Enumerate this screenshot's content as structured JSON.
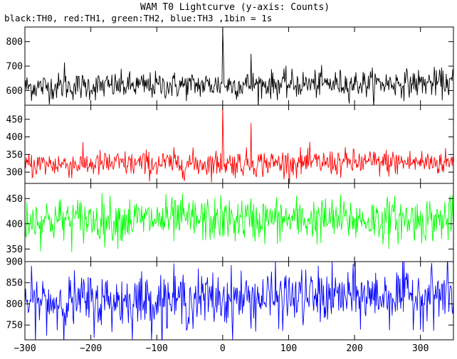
{
  "title": "WAM T0 Lightcurve (y-axis: Counts)",
  "subtitle": "black:TH0, red:TH1, green:TH2, blue:TH3 ,1bin = 1s",
  "chart_data": {
    "type": "line",
    "x_range": [
      -300,
      350
    ],
    "x_ticks": [
      -300,
      -200,
      -100,
      0,
      100,
      200,
      300
    ],
    "bin_seconds": 1,
    "panels": [
      {
        "series": "TH0",
        "color": "#000000",
        "ylim": [
          540,
          860
        ],
        "y_ticks": [
          600,
          700,
          800
        ],
        "baseline_start": 615,
        "baseline_end": 632,
        "noise_sd": 28,
        "features": [
          [
            -240,
            715
          ],
          [
            0,
            855
          ],
          [
            1,
            760
          ],
          [
            43,
            750
          ]
        ]
      },
      {
        "series": "TH1",
        "color": "#ff0000",
        "ylim": [
          268,
          490
        ],
        "y_ticks": [
          300,
          350,
          400,
          450
        ],
        "baseline_start": 322,
        "baseline_end": 328,
        "noise_sd": 19,
        "features": [
          [
            0,
            488
          ],
          [
            1,
            390
          ],
          [
            43,
            440
          ]
        ]
      },
      {
        "series": "TH2",
        "color": "#00ff00",
        "ylim": [
          325,
          480
        ],
        "y_ticks": [
          350,
          400,
          450
        ],
        "baseline_start": 408,
        "baseline_end": 408,
        "noise_sd": 22,
        "features": []
      },
      {
        "series": "TH3",
        "color": "#0000ff",
        "ylim": [
          715,
          900
        ],
        "y_ticks": [
          750,
          800,
          850,
          900
        ],
        "baseline_start": 803,
        "baseline_end": 822,
        "noise_sd": 33,
        "features": []
      }
    ]
  }
}
